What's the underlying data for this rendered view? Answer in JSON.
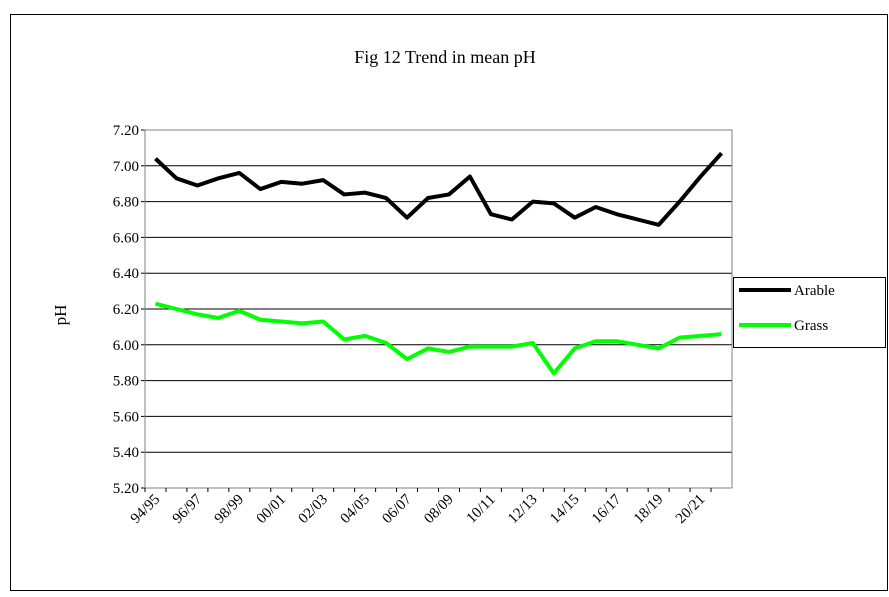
{
  "chart_data": {
    "type": "line",
    "title": "Fig 12 Trend in mean pH",
    "y_label": "pH",
    "categories": [
      "94/95",
      null,
      "96/97",
      null,
      "98/99",
      null,
      "00/01",
      null,
      "02/03",
      null,
      "04/05",
      null,
      "06/07",
      null,
      "08/09",
      null,
      "10/11",
      null,
      "12/13",
      null,
      "14/15",
      null,
      "16/17",
      null,
      "18/19",
      null,
      "20/21",
      null
    ],
    "series": [
      {
        "name": "Arable",
        "color": "#000000",
        "values": [
          7.04,
          6.93,
          6.89,
          6.93,
          6.96,
          6.87,
          6.91,
          6.9,
          6.92,
          6.84,
          6.85,
          6.82,
          6.71,
          6.82,
          6.84,
          6.94,
          6.73,
          6.7,
          6.8,
          6.79,
          6.71,
          6.77,
          6.73,
          6.7,
          6.67,
          6.8,
          6.94,
          7.07
        ]
      },
      {
        "name": "Grass",
        "color": "#00ff00",
        "values": [
          6.23,
          6.2,
          6.17,
          6.15,
          6.19,
          6.14,
          6.13,
          6.12,
          6.13,
          6.03,
          6.05,
          6.01,
          5.92,
          5.98,
          5.96,
          5.99,
          5.99,
          5.99,
          6.01,
          5.84,
          5.98,
          6.02,
          6.02,
          6.0,
          5.98,
          6.04,
          6.05,
          6.06
        ]
      }
    ],
    "ylim": [
      5.2,
      7.2
    ],
    "yticks": [
      {
        "value": 5.2,
        "label": "5.20"
      },
      {
        "value": 5.4,
        "label": "5.40"
      },
      {
        "value": 5.6,
        "label": "5.60"
      },
      {
        "value": 5.8,
        "label": "5.80"
      },
      {
        "value": 6.0,
        "label": "6.00"
      },
      {
        "value": 6.2,
        "label": "6.20"
      },
      {
        "value": 6.4,
        "label": "6.40"
      },
      {
        "value": 6.6,
        "label": "6.60"
      },
      {
        "value": 6.8,
        "label": "6.80"
      },
      {
        "value": 7.0,
        "label": "7.00"
      },
      {
        "value": 7.2,
        "label": "7.20"
      }
    ],
    "grid": true,
    "legend": "right"
  }
}
